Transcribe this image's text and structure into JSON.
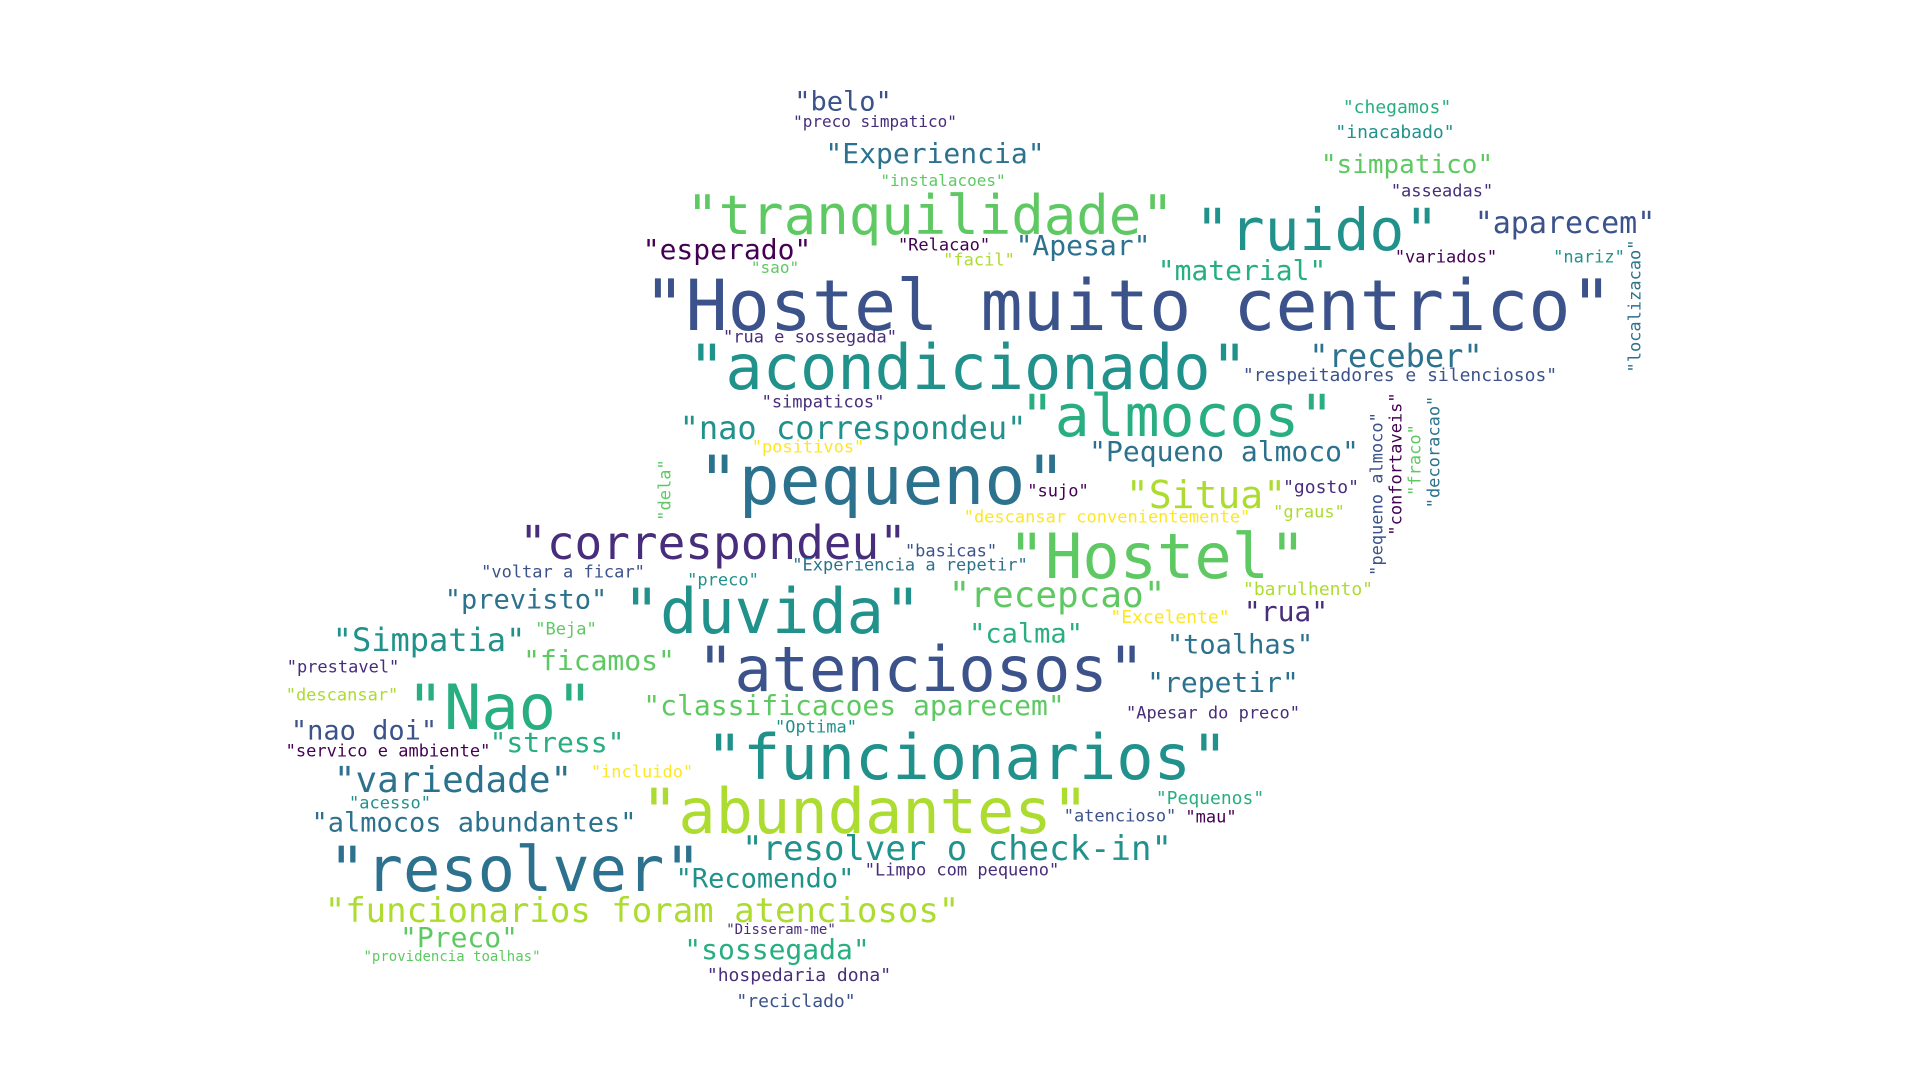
{
  "colors": {
    "background": "#ffffff",
    "palette": [
      "#440154",
      "#472d7b",
      "#3b528b",
      "#2c728e",
      "#21918c",
      "#28ae80",
      "#5ec962",
      "#addc30",
      "#fde725"
    ]
  },
  "words": [
    {
      "text": "\"belo\"",
      "color": "#3b528b"
    },
    {
      "text": "\"preco simpatico\"",
      "color": "#472d7b"
    },
    {
      "text": "\"Experiencia\"",
      "color": "#2c728e"
    },
    {
      "text": "\"instalacoes\"",
      "color": "#5ec962"
    },
    {
      "text": "\"tranquilidade\"",
      "color": "#5ec962"
    },
    {
      "text": "\"ruido\"",
      "color": "#21918c"
    },
    {
      "text": "\"aparecem\"",
      "color": "#3b528b"
    },
    {
      "text": "\"chegamos\"",
      "color": "#28ae80"
    },
    {
      "text": "\"inacabado\"",
      "color": "#21918c"
    },
    {
      "text": "\"simpatico\"",
      "color": "#5ec962"
    },
    {
      "text": "\"asseadas\"",
      "color": "#472d7b"
    },
    {
      "text": "\"esperado\"",
      "color": "#440154"
    },
    {
      "text": "\"Relacao\"",
      "color": "#440154"
    },
    {
      "text": "\"Apesar\"",
      "color": "#2c728e"
    },
    {
      "text": "\"sao\"",
      "color": "#5ec962"
    },
    {
      "text": "\"facil\"",
      "color": "#addc30"
    },
    {
      "text": "\"material\"",
      "color": "#28ae80"
    },
    {
      "text": "\"variados\"",
      "color": "#440154"
    },
    {
      "text": "\"nariz\"",
      "color": "#21918c"
    },
    {
      "text": "\"localizacao\"",
      "color": "#2c728e"
    },
    {
      "text": "\"Hostel muito centrico\"",
      "color": "#3b528b"
    },
    {
      "text": "\"rua e sossegada\"",
      "color": "#472d7b"
    },
    {
      "text": "\"acondicionado\"",
      "color": "#21918c"
    },
    {
      "text": "\"receber\"",
      "color": "#2c728e"
    },
    {
      "text": "\"respeitadores e silenciosos\"",
      "color": "#3b528b"
    },
    {
      "text": "\"simpaticos\"",
      "color": "#472d7b"
    },
    {
      "text": "\"almocos\"",
      "color": "#28ae80"
    },
    {
      "text": "\"nao correspondeu\"",
      "color": "#21918c"
    },
    {
      "text": "\"positivos\"",
      "color": "#fde725"
    },
    {
      "text": "\"Pequeno almoco\"",
      "color": "#2c728e"
    },
    {
      "text": "\"pequeno almoco\"",
      "color": "#3b528b"
    },
    {
      "text": "\"confortaveis\"",
      "color": "#440154"
    },
    {
      "text": "\"fraco\"",
      "color": "#5ec962"
    },
    {
      "text": "\"decoracao\"",
      "color": "#2c728e"
    },
    {
      "text": "\"pequeno\"",
      "color": "#2c728e"
    },
    {
      "text": "\"dela\"",
      "color": "#5ec962"
    },
    {
      "text": "\"sujo\"",
      "color": "#440154"
    },
    {
      "text": "\"gosto\"",
      "color": "#472d7b"
    },
    {
      "text": "\"Situa\"",
      "color": "#addc30"
    },
    {
      "text": "\"graus\"",
      "color": "#addc30"
    },
    {
      "text": "\"descansar convenientemente\"",
      "color": "#fde725"
    },
    {
      "text": "\"correspondeu\"",
      "color": "#472d7b"
    },
    {
      "text": "\"Hostel\"",
      "color": "#5ec962"
    },
    {
      "text": "\"basicas\"",
      "color": "#3b528b"
    },
    {
      "text": "\"Experiencia a repetir\"",
      "color": "#2c728e"
    },
    {
      "text": "\"voltar a ficar\"",
      "color": "#3b528b"
    },
    {
      "text": "\"preco\"",
      "color": "#21918c"
    },
    {
      "text": "\"barulhento\"",
      "color": "#addc30"
    },
    {
      "text": "\"previsto\"",
      "color": "#2c728e"
    },
    {
      "text": "\"duvida\"",
      "color": "#21918c"
    },
    {
      "text": "\"recepcao\"",
      "color": "#5ec962"
    },
    {
      "text": "\"rua\"",
      "color": "#472d7b"
    },
    {
      "text": "\"Excelente\"",
      "color": "#fde725"
    },
    {
      "text": "\"Beja\"",
      "color": "#5ec962"
    },
    {
      "text": "\"Simpatia\"",
      "color": "#21918c"
    },
    {
      "text": "\"calma\"",
      "color": "#28ae80"
    },
    {
      "text": "\"toalhas\"",
      "color": "#2c728e"
    },
    {
      "text": "\"ficamos\"",
      "color": "#5ec962"
    },
    {
      "text": "\"prestavel\"",
      "color": "#472d7b"
    },
    {
      "text": "\"atenciosos\"",
      "color": "#3b528b"
    },
    {
      "text": "\"descansar\"",
      "color": "#addc30"
    },
    {
      "text": "\"Nao\"",
      "color": "#28ae80"
    },
    {
      "text": "\"repetir\"",
      "color": "#2c728e"
    },
    {
      "text": "\"classificacoes aparecem\"",
      "color": "#5ec962"
    },
    {
      "text": "\"Apesar do preco\"",
      "color": "#472d7b"
    },
    {
      "text": "\"Optima\"",
      "color": "#21918c"
    },
    {
      "text": "\"nao doi\"",
      "color": "#3b528b"
    },
    {
      "text": "\"servico e ambiente\"",
      "color": "#440154"
    },
    {
      "text": "\"stress\"",
      "color": "#28ae80"
    },
    {
      "text": "\"funcionarios\"",
      "color": "#21918c"
    },
    {
      "text": "\"variedade\"",
      "color": "#2c728e"
    },
    {
      "text": "\"incluido\"",
      "color": "#fde725"
    },
    {
      "text": "\"acesso\"",
      "color": "#21918c"
    },
    {
      "text": "\"abundantes\"",
      "color": "#addc30"
    },
    {
      "text": "\"Pequenos\"",
      "color": "#28ae80"
    },
    {
      "text": "\"almocos abundantes\"",
      "color": "#2c728e"
    },
    {
      "text": "\"atencioso\"",
      "color": "#3b528b"
    },
    {
      "text": "\"mau\"",
      "color": "#440154"
    },
    {
      "text": "\"resolver o check-in\"",
      "color": "#21918c"
    },
    {
      "text": "\"resolver\"",
      "color": "#2c728e"
    },
    {
      "text": "\"Recomendo\"",
      "color": "#21918c"
    },
    {
      "text": "\"Limpo com pequeno\"",
      "color": "#472d7b"
    },
    {
      "text": "\"funcionarios foram atenciosos\"",
      "color": "#addc30"
    },
    {
      "text": "\"Preco\"",
      "color": "#5ec962"
    },
    {
      "text": "\"Disseram-me\"",
      "color": "#472d7b"
    },
    {
      "text": "\"sossegada\"",
      "color": "#28ae80"
    },
    {
      "text": "\"providencia toalhas\"",
      "color": "#5ec962"
    },
    {
      "text": "\"hospedaria dona\"",
      "color": "#472d7b"
    },
    {
      "text": "\"reciclado\"",
      "color": "#3b528b"
    }
  ]
}
